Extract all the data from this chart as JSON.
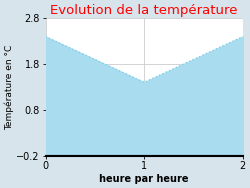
{
  "x": [
    0,
    1,
    2
  ],
  "y": [
    2.4,
    1.4,
    2.4
  ],
  "title": "Evolution de la température",
  "title_color": "#ff0000",
  "xlabel": "heure par heure",
  "ylabel": "Température en °C",
  "xlim": [
    0,
    2
  ],
  "ylim": [
    -0.2,
    2.8
  ],
  "yticks": [
    -0.2,
    0.8,
    1.8,
    2.8
  ],
  "xticks": [
    0,
    1,
    2
  ],
  "line_color": "#7acfe8",
  "fill_color": "#aadcef",
  "fill_alpha": 1.0,
  "fill_baseline": -0.2,
  "bg_color": "#d8e4ec",
  "axes_bg_color": "#ffffff",
  "title_fontsize": 9.5,
  "label_fontsize": 7,
  "tick_fontsize": 7,
  "grid_color": "#cccccc",
  "line_width": 1.0,
  "xlabel_fontweight": "bold"
}
